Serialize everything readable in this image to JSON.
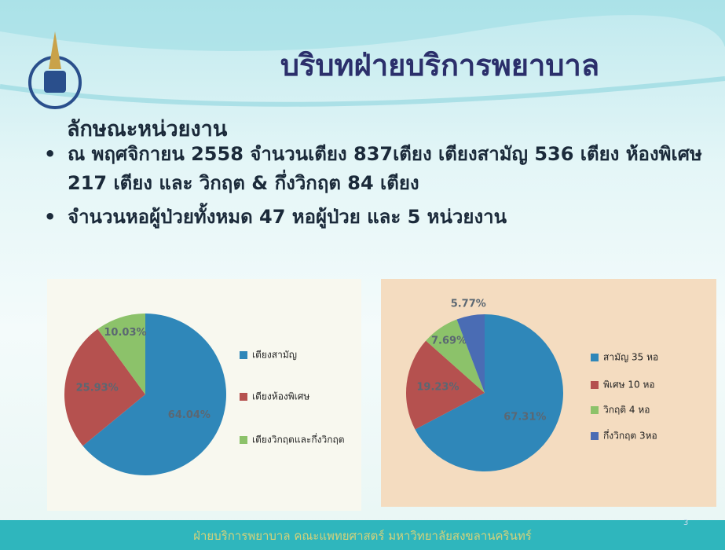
{
  "slide": {
    "title": "บริบทฝ่ายบริการพยาบาล",
    "heading": "ลักษณะหน่วยงาน",
    "bullets": [
      "ณ พฤศจิกายน 2558 จำนวนเตียง 837เตียง เตียงสามัญ 536 เตียง  ห้องพิเศษ 217 เตียง และ วิกฤต & กึ่งวิกฤต 84 เตียง",
      "จำนวนหอผู้ป่วยทั้งหมด 47 หอผู้ป่วย และ 5 หน่วยงาน"
    ],
    "footer": "ฝ่ายบริการพยาบาล คณะแพทยศาสตร์ มหาวิทยาลัยสงขลานครินทร์",
    "page_number": "3"
  },
  "chart_data": [
    {
      "type": "pie",
      "categories": [
        "เตียงสามัญ",
        "เตียงห้องพิเศษ",
        "เตียงวิกฤตและกึ่งวิกฤต"
      ],
      "values": [
        64.04,
        25.93,
        10.03
      ],
      "value_labels": [
        "64.04%",
        "25.93%",
        "10.03%"
      ],
      "colors": [
        "#2f87b9",
        "#b5514f",
        "#8cc26a"
      ]
    },
    {
      "type": "pie",
      "categories": [
        "สามัญ 35 หอ",
        "พิเศษ 10 หอ",
        "วิกฤติ 4 หอ",
        "กึ่งวิกฤต 3หอ"
      ],
      "values": [
        67.31,
        19.23,
        7.69,
        5.77
      ],
      "value_labels": [
        "67.31%",
        "19.23%",
        "7.69%",
        "5.77%"
      ],
      "colors": [
        "#2f87b9",
        "#b5514f",
        "#8cc26a",
        "#4a6cb4"
      ]
    }
  ]
}
